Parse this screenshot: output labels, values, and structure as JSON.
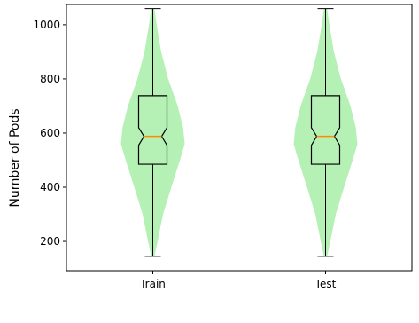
{
  "chart_data": {
    "type": "violin",
    "xlabel": "",
    "ylabel": "Number of Pods",
    "ylim": [
      92,
      1075
    ],
    "yticks": [
      200,
      400,
      600,
      800,
      1000
    ],
    "grid": false,
    "categories": [
      "Train",
      "Test"
    ],
    "groups": [
      {
        "category": "Train",
        "min": 145,
        "q1": 485,
        "median": 588,
        "q3": 738,
        "max": 1060,
        "notch_low": 555,
        "notch_high": 620,
        "density": [
          [
            145,
            0.05
          ],
          [
            200,
            0.15
          ],
          [
            300,
            0.32
          ],
          [
            400,
            0.58
          ],
          [
            500,
            0.85
          ],
          [
            560,
            1.0
          ],
          [
            620,
            0.95
          ],
          [
            700,
            0.78
          ],
          [
            800,
            0.48
          ],
          [
            900,
            0.26
          ],
          [
            1000,
            0.12
          ],
          [
            1060,
            0.05
          ]
        ]
      },
      {
        "category": "Test",
        "min": 145,
        "q1": 485,
        "median": 588,
        "q3": 738,
        "max": 1060,
        "notch_low": 555,
        "notch_high": 620,
        "density": [
          [
            145,
            0.05
          ],
          [
            200,
            0.15
          ],
          [
            300,
            0.32
          ],
          [
            400,
            0.58
          ],
          [
            500,
            0.85
          ],
          [
            560,
            1.0
          ],
          [
            620,
            0.95
          ],
          [
            700,
            0.78
          ],
          [
            800,
            0.48
          ],
          [
            900,
            0.26
          ],
          [
            1000,
            0.12
          ],
          [
            1060,
            0.05
          ]
        ]
      }
    ],
    "colors": {
      "violin_fill": "#b5f0b5",
      "box_line": "#000000",
      "median": "#ff8c00",
      "axes": "#000000"
    }
  }
}
